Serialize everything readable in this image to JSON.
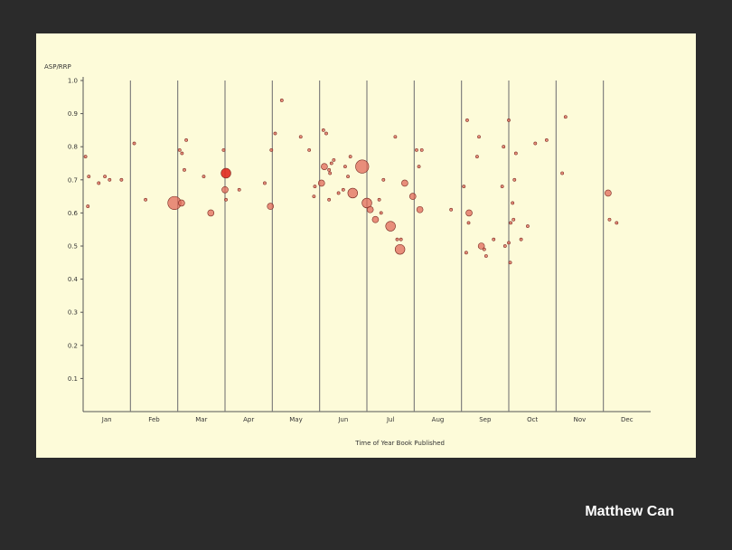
{
  "slide": {
    "author": "Matthew Can"
  },
  "chart_data": {
    "type": "scatter",
    "title": "",
    "xlabel": "Time of Year Book Published",
    "ylabel": "ASP/RRP",
    "xlim": [
      0,
      12
    ],
    "ylim": [
      0,
      1.0
    ],
    "y_ticks": [
      "0.1",
      "0.2",
      "0.3",
      "0.4",
      "0.5",
      "0.6",
      "0.7",
      "0.8",
      "0.9",
      "1.0"
    ],
    "months": [
      "Jan",
      "Feb",
      "Mar",
      "Apr",
      "May",
      "Jun",
      "Jul",
      "Aug",
      "Sep",
      "Oct",
      "Nov",
      "Dec"
    ],
    "month_dividers": true,
    "marker_color": "#e06a5a",
    "highlight_color": "#e02a20",
    "points": [
      {
        "x": 0.05,
        "y": 0.77,
        "s": 1
      },
      {
        "x": 0.1,
        "y": 0.62,
        "s": 1
      },
      {
        "x": 0.12,
        "y": 0.71,
        "s": 1
      },
      {
        "x": 0.33,
        "y": 0.69,
        "s": 1
      },
      {
        "x": 0.46,
        "y": 0.71,
        "s": 1
      },
      {
        "x": 0.56,
        "y": 0.7,
        "s": 1
      },
      {
        "x": 0.81,
        "y": 0.7,
        "s": 1
      },
      {
        "x": 1.08,
        "y": 0.81,
        "s": 1
      },
      {
        "x": 1.32,
        "y": 0.64,
        "s": 1
      },
      {
        "x": 1.93,
        "y": 0.63,
        "s": 4
      },
      {
        "x": 2.08,
        "y": 0.63,
        "s": 2
      },
      {
        "x": 2.04,
        "y": 0.79,
        "s": 1
      },
      {
        "x": 2.09,
        "y": 0.78,
        "s": 1
      },
      {
        "x": 2.18,
        "y": 0.82,
        "s": 1
      },
      {
        "x": 2.14,
        "y": 0.73,
        "s": 1
      },
      {
        "x": 2.55,
        "y": 0.71,
        "s": 1
      },
      {
        "x": 2.7,
        "y": 0.6,
        "s": 2
      },
      {
        "x": 2.97,
        "y": 0.79,
        "s": 1
      },
      {
        "x": 3.02,
        "y": 0.72,
        "s": 3,
        "hl": true
      },
      {
        "x": 3.0,
        "y": 0.67,
        "s": 2
      },
      {
        "x": 3.02,
        "y": 0.64,
        "s": 1
      },
      {
        "x": 3.3,
        "y": 0.67,
        "s": 1
      },
      {
        "x": 3.84,
        "y": 0.69,
        "s": 1
      },
      {
        "x": 3.96,
        "y": 0.62,
        "s": 2
      },
      {
        "x": 3.98,
        "y": 0.79,
        "s": 1
      },
      {
        "x": 4.06,
        "y": 0.84,
        "s": 1
      },
      {
        "x": 4.2,
        "y": 0.94,
        "s": 1
      },
      {
        "x": 4.6,
        "y": 0.83,
        "s": 1
      },
      {
        "x": 4.78,
        "y": 0.79,
        "s": 1
      },
      {
        "x": 4.9,
        "y": 0.68,
        "s": 1
      },
      {
        "x": 4.88,
        "y": 0.65,
        "s": 1
      },
      {
        "x": 5.04,
        "y": 0.69,
        "s": 2
      },
      {
        "x": 5.08,
        "y": 0.85,
        "s": 1
      },
      {
        "x": 5.14,
        "y": 0.84,
        "s": 1
      },
      {
        "x": 5.1,
        "y": 0.74,
        "s": 2
      },
      {
        "x": 5.2,
        "y": 0.73,
        "s": 1
      },
      {
        "x": 5.22,
        "y": 0.72,
        "s": 1
      },
      {
        "x": 5.25,
        "y": 0.75,
        "s": 1
      },
      {
        "x": 5.3,
        "y": 0.76,
        "s": 1
      },
      {
        "x": 5.2,
        "y": 0.64,
        "s": 1
      },
      {
        "x": 5.4,
        "y": 0.66,
        "s": 1
      },
      {
        "x": 5.5,
        "y": 0.67,
        "s": 1
      },
      {
        "x": 5.54,
        "y": 0.74,
        "s": 1
      },
      {
        "x": 5.6,
        "y": 0.71,
        "s": 1
      },
      {
        "x": 5.65,
        "y": 0.77,
        "s": 1
      },
      {
        "x": 5.7,
        "y": 0.66,
        "s": 3
      },
      {
        "x": 5.9,
        "y": 0.74,
        "s": 4
      },
      {
        "x": 6.0,
        "y": 0.63,
        "s": 3
      },
      {
        "x": 6.07,
        "y": 0.61,
        "s": 2
      },
      {
        "x": 6.18,
        "y": 0.58,
        "s": 2
      },
      {
        "x": 6.26,
        "y": 0.64,
        "s": 1
      },
      {
        "x": 6.3,
        "y": 0.6,
        "s": 1
      },
      {
        "x": 6.35,
        "y": 0.7,
        "s": 1
      },
      {
        "x": 6.5,
        "y": 0.56,
        "s": 3
      },
      {
        "x": 6.6,
        "y": 0.83,
        "s": 1
      },
      {
        "x": 6.64,
        "y": 0.52,
        "s": 1
      },
      {
        "x": 6.7,
        "y": 0.49,
        "s": 3
      },
      {
        "x": 6.72,
        "y": 0.52,
        "s": 1
      },
      {
        "x": 6.8,
        "y": 0.69,
        "s": 2
      },
      {
        "x": 6.97,
        "y": 0.65,
        "s": 2
      },
      {
        "x": 7.05,
        "y": 0.79,
        "s": 1
      },
      {
        "x": 7.1,
        "y": 0.74,
        "s": 1
      },
      {
        "x": 7.16,
        "y": 0.79,
        "s": 1
      },
      {
        "x": 7.12,
        "y": 0.61,
        "s": 2
      },
      {
        "x": 7.78,
        "y": 0.61,
        "s": 1
      },
      {
        "x": 8.05,
        "y": 0.68,
        "s": 1
      },
      {
        "x": 8.12,
        "y": 0.88,
        "s": 1
      },
      {
        "x": 8.16,
        "y": 0.6,
        "s": 2
      },
      {
        "x": 8.15,
        "y": 0.57,
        "s": 1
      },
      {
        "x": 8.1,
        "y": 0.48,
        "s": 1
      },
      {
        "x": 8.33,
        "y": 0.77,
        "s": 1
      },
      {
        "x": 8.37,
        "y": 0.83,
        "s": 1
      },
      {
        "x": 8.42,
        "y": 0.5,
        "s": 2
      },
      {
        "x": 8.48,
        "y": 0.49,
        "s": 1
      },
      {
        "x": 8.52,
        "y": 0.47,
        "s": 1
      },
      {
        "x": 8.68,
        "y": 0.52,
        "s": 1
      },
      {
        "x": 8.86,
        "y": 0.68,
        "s": 1
      },
      {
        "x": 8.89,
        "y": 0.8,
        "s": 1
      },
      {
        "x": 8.92,
        "y": 0.5,
        "s": 1
      },
      {
        "x": 9.0,
        "y": 0.51,
        "s": 1
      },
      {
        "x": 9.03,
        "y": 0.45,
        "s": 1
      },
      {
        "x": 9.04,
        "y": 0.57,
        "s": 1
      },
      {
        "x": 9.1,
        "y": 0.58,
        "s": 1
      },
      {
        "x": 9.08,
        "y": 0.63,
        "s": 1
      },
      {
        "x": 9.12,
        "y": 0.7,
        "s": 1
      },
      {
        "x": 9.15,
        "y": 0.78,
        "s": 1
      },
      {
        "x": 9.0,
        "y": 0.88,
        "s": 1
      },
      {
        "x": 9.26,
        "y": 0.52,
        "s": 1
      },
      {
        "x": 9.4,
        "y": 0.56,
        "s": 1
      },
      {
        "x": 9.56,
        "y": 0.81,
        "s": 1
      },
      {
        "x": 9.8,
        "y": 0.82,
        "s": 1
      },
      {
        "x": 10.13,
        "y": 0.72,
        "s": 1
      },
      {
        "x": 10.2,
        "y": 0.89,
        "s": 1
      },
      {
        "x": 11.1,
        "y": 0.66,
        "s": 2
      },
      {
        "x": 11.13,
        "y": 0.58,
        "s": 1
      },
      {
        "x": 11.28,
        "y": 0.57,
        "s": 1
      }
    ]
  }
}
